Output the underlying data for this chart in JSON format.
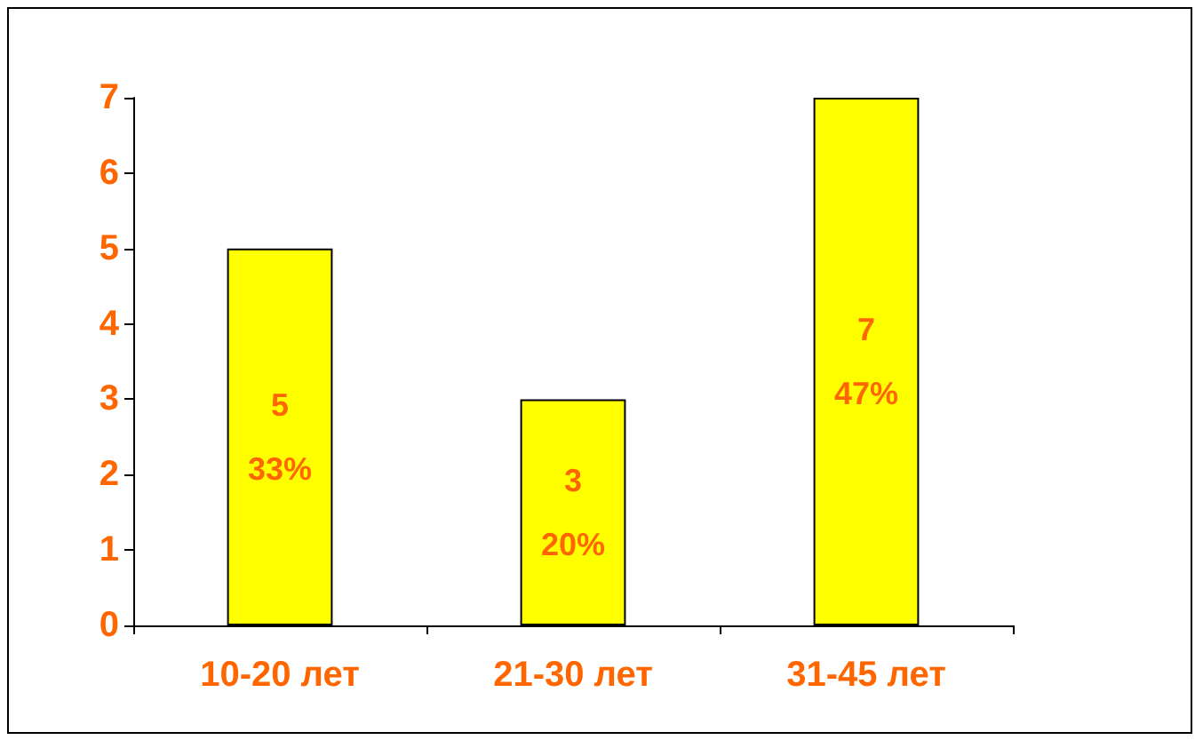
{
  "chart_data": {
    "type": "bar",
    "categories": [
      "10-20 лет",
      "21-30 лет",
      "31-45 лет"
    ],
    "series": [
      {
        "color": "#ffff00",
        "values": [
          5,
          3,
          7
        ],
        "value_labels": [
          "5\n\n33%",
          "3\n\n20%",
          "7\n\n47%"
        ]
      }
    ],
    "ylim": [
      0,
      7
    ],
    "yticks": [
      0,
      1,
      2,
      3,
      4,
      5,
      6,
      7
    ],
    "grid": false
  }
}
